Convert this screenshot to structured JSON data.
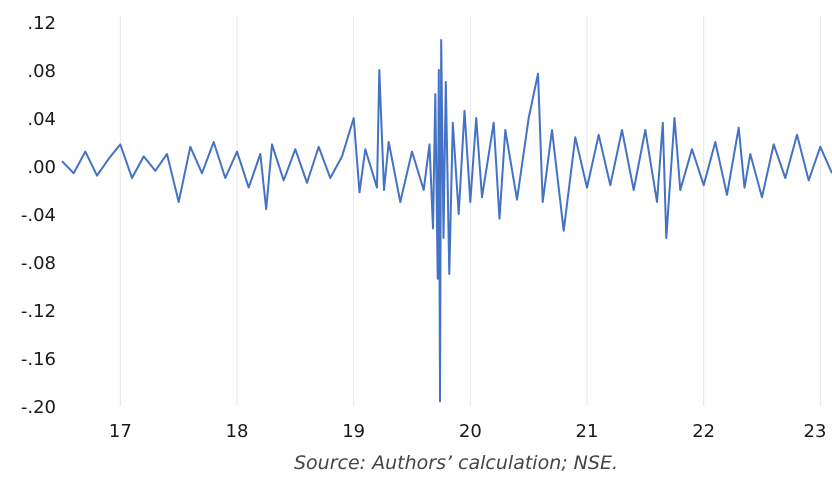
{
  "chart_data": {
    "type": "line",
    "title": "",
    "xlabel": "",
    "ylabel": "",
    "y_ticks": [
      ".12",
      ".08",
      ".04",
      ".00",
      "-.04",
      "-.08",
      "-.12",
      "-.16",
      "-.20"
    ],
    "y_tick_values": [
      0.12,
      0.08,
      0.04,
      0.0,
      -0.04,
      -0.08,
      -0.12,
      -0.16,
      -0.2
    ],
    "x_ticks": [
      "17",
      "18",
      "19",
      "20",
      "21",
      "22",
      "23"
    ],
    "x_tick_values": [
      2017,
      2018,
      2019,
      2020,
      2021,
      2022,
      2023
    ],
    "xlim": [
      2016.5,
      2023.1
    ],
    "ylim": [
      -0.2,
      0.12
    ],
    "grid": "vertical",
    "series": [
      {
        "color": "#4472c4",
        "points": [
          [
            2016.5,
            0.004
          ],
          [
            2016.6,
            -0.006
          ],
          [
            2016.7,
            0.012
          ],
          [
            2016.8,
            -0.008
          ],
          [
            2016.9,
            0.006
          ],
          [
            2017.0,
            0.018
          ],
          [
            2017.1,
            -0.01
          ],
          [
            2017.2,
            0.008
          ],
          [
            2017.3,
            -0.004
          ],
          [
            2017.4,
            0.01
          ],
          [
            2017.5,
            -0.03
          ],
          [
            2017.6,
            0.016
          ],
          [
            2017.7,
            -0.006
          ],
          [
            2017.8,
            0.02
          ],
          [
            2017.9,
            -0.01
          ],
          [
            2018.0,
            0.012
          ],
          [
            2018.1,
            -0.018
          ],
          [
            2018.2,
            0.01
          ],
          [
            2018.25,
            -0.036
          ],
          [
            2018.3,
            0.018
          ],
          [
            2018.4,
            -0.012
          ],
          [
            2018.5,
            0.014
          ],
          [
            2018.6,
            -0.014
          ],
          [
            2018.7,
            0.016
          ],
          [
            2018.8,
            -0.01
          ],
          [
            2018.9,
            0.008
          ],
          [
            2019.0,
            0.04
          ],
          [
            2019.05,
            -0.022
          ],
          [
            2019.1,
            0.014
          ],
          [
            2019.2,
            -0.018
          ],
          [
            2019.22,
            0.08
          ],
          [
            2019.26,
            -0.02
          ],
          [
            2019.3,
            0.02
          ],
          [
            2019.4,
            -0.03
          ],
          [
            2019.5,
            0.012
          ],
          [
            2019.6,
            -0.02
          ],
          [
            2019.65,
            0.018
          ],
          [
            2019.68,
            -0.052
          ],
          [
            2019.7,
            0.06
          ],
          [
            2019.72,
            -0.094
          ],
          [
            2019.73,
            0.08
          ],
          [
            2019.74,
            -0.196
          ],
          [
            2019.75,
            0.105
          ],
          [
            2019.77,
            -0.06
          ],
          [
            2019.79,
            0.07
          ],
          [
            2019.82,
            -0.09
          ],
          [
            2019.85,
            0.036
          ],
          [
            2019.9,
            -0.04
          ],
          [
            2019.95,
            0.046
          ],
          [
            2020.0,
            -0.03
          ],
          [
            2020.05,
            0.04
          ],
          [
            2020.1,
            -0.026
          ],
          [
            2020.2,
            0.036
          ],
          [
            2020.25,
            -0.044
          ],
          [
            2020.3,
            0.03
          ],
          [
            2020.4,
            -0.028
          ],
          [
            2020.5,
            0.04
          ],
          [
            2020.58,
            0.077
          ],
          [
            2020.62,
            -0.03
          ],
          [
            2020.7,
            0.03
          ],
          [
            2020.8,
            -0.054
          ],
          [
            2020.9,
            0.024
          ],
          [
            2021.0,
            -0.018
          ],
          [
            2021.1,
            0.026
          ],
          [
            2021.2,
            -0.016
          ],
          [
            2021.3,
            0.03
          ],
          [
            2021.4,
            -0.02
          ],
          [
            2021.5,
            0.03
          ],
          [
            2021.6,
            -0.03
          ],
          [
            2021.65,
            0.036
          ],
          [
            2021.68,
            -0.06
          ],
          [
            2021.75,
            0.04
          ],
          [
            2021.8,
            -0.02
          ],
          [
            2021.9,
            0.014
          ],
          [
            2022.0,
            -0.016
          ],
          [
            2022.1,
            0.02
          ],
          [
            2022.2,
            -0.024
          ],
          [
            2022.3,
            0.032
          ],
          [
            2022.35,
            -0.018
          ],
          [
            2022.4,
            0.01
          ],
          [
            2022.5,
            -0.026
          ],
          [
            2022.6,
            0.018
          ],
          [
            2022.7,
            -0.01
          ],
          [
            2022.8,
            0.026
          ],
          [
            2022.9,
            -0.012
          ],
          [
            2023.0,
            0.016
          ],
          [
            2023.1,
            -0.006
          ]
        ]
      }
    ]
  },
  "source_text": "Source: Authors’ calculation; NSE."
}
